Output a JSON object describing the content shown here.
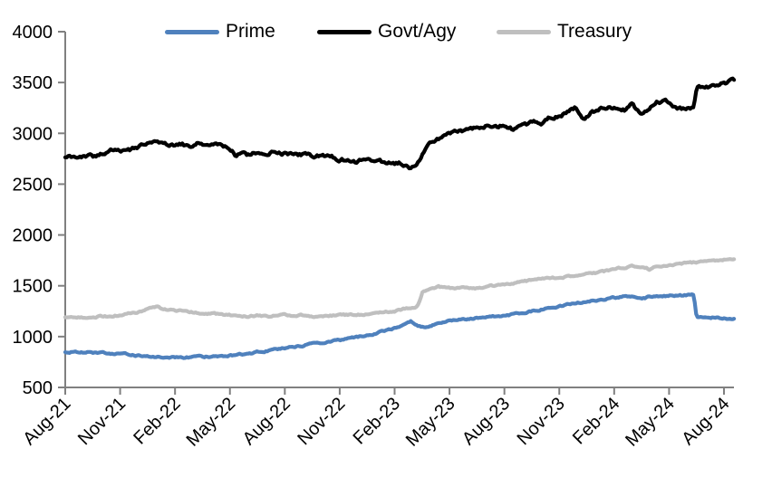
{
  "colors": {
    "background": "#FFFFFF",
    "axis": "#808080",
    "text": "#000000",
    "prime": "#4F81BD",
    "govt_agy": "#000000",
    "treasury": "#BFBFBF"
  },
  "chart_data": {
    "type": "line",
    "title": "",
    "xlabel": "",
    "ylabel": "",
    "grid": false,
    "legend_position": "top",
    "x_unit": "months since Aug-2021",
    "x_tick_labels": [
      "Aug-21",
      "Nov-21",
      "Feb-22",
      "May-22",
      "Aug-22",
      "Nov-22",
      "Feb-23",
      "May-23",
      "Aug-23",
      "Nov-23",
      "Feb-24",
      "May-24",
      "Aug-24"
    ],
    "x_tick_month_index": [
      0,
      3,
      6,
      9,
      12,
      15,
      18,
      21,
      24,
      27,
      30,
      33,
      36
    ],
    "ylim": [
      500,
      4000
    ],
    "y_ticks": [
      500,
      1000,
      1500,
      2000,
      2500,
      3000,
      3500,
      4000
    ],
    "series": [
      {
        "name": "Prime",
        "color": "#4F81BD",
        "points": [
          [
            0,
            850
          ],
          [
            1,
            844
          ],
          [
            2,
            840
          ],
          [
            3,
            832
          ],
          [
            4,
            812
          ],
          [
            5,
            798
          ],
          [
            6,
            792
          ],
          [
            7,
            798
          ],
          [
            8,
            806
          ],
          [
            9,
            815
          ],
          [
            10,
            835
          ],
          [
            11,
            858
          ],
          [
            12,
            888
          ],
          [
            13,
            915
          ],
          [
            14,
            940
          ],
          [
            15,
            965
          ],
          [
            16,
            995
          ],
          [
            17,
            1032
          ],
          [
            18,
            1078
          ],
          [
            18.5,
            1122
          ],
          [
            18.9,
            1152
          ],
          [
            19.3,
            1098
          ],
          [
            19.7,
            1090
          ],
          [
            20.2,
            1118
          ],
          [
            21,
            1158
          ],
          [
            22,
            1175
          ],
          [
            23,
            1188
          ],
          [
            24,
            1205
          ],
          [
            25,
            1235
          ],
          [
            26,
            1268
          ],
          [
            27,
            1295
          ],
          [
            28,
            1330
          ],
          [
            29,
            1360
          ],
          [
            30,
            1382
          ],
          [
            31,
            1400
          ],
          [
            31.5,
            1372
          ],
          [
            32,
            1393
          ],
          [
            33,
            1402
          ],
          [
            34,
            1405
          ],
          [
            34.35,
            1408
          ],
          [
            34.5,
            1192
          ],
          [
            35,
            1193
          ],
          [
            35.8,
            1182
          ],
          [
            36.55,
            1176
          ]
        ]
      },
      {
        "name": "Govt/Agy",
        "color": "#000000",
        "points": [
          [
            0,
            2775
          ],
          [
            0.5,
            2770
          ],
          [
            1,
            2782
          ],
          [
            1.5,
            2775
          ],
          [
            2,
            2800
          ],
          [
            2.5,
            2830
          ],
          [
            3,
            2815
          ],
          [
            3.5,
            2835
          ],
          [
            4,
            2862
          ],
          [
            4.6,
            2905
          ],
          [
            5,
            2932
          ],
          [
            5.3,
            2912
          ],
          [
            5.7,
            2880
          ],
          [
            6,
            2872
          ],
          [
            6.4,
            2895
          ],
          [
            6.8,
            2862
          ],
          [
            7.2,
            2895
          ],
          [
            7.6,
            2865
          ],
          [
            8,
            2875
          ],
          [
            8.5,
            2880
          ],
          [
            9,
            2858
          ],
          [
            9.3,
            2790
          ],
          [
            9.7,
            2800
          ],
          [
            10,
            2788
          ],
          [
            10.4,
            2815
          ],
          [
            11,
            2805
          ],
          [
            11.5,
            2812
          ],
          [
            12,
            2800
          ],
          [
            12.5,
            2795
          ],
          [
            13,
            2788
          ],
          [
            13.5,
            2775
          ],
          [
            14,
            2790
          ],
          [
            14.5,
            2770
          ],
          [
            15,
            2748
          ],
          [
            15.5,
            2732
          ],
          [
            16,
            2722
          ],
          [
            16.4,
            2752
          ],
          [
            16.8,
            2718
          ],
          [
            17.2,
            2715
          ],
          [
            17.6,
            2722
          ],
          [
            18,
            2692
          ],
          [
            18.4,
            2702
          ],
          [
            18.8,
            2662
          ],
          [
            19.1,
            2662
          ],
          [
            19.4,
            2758
          ],
          [
            19.8,
            2882
          ],
          [
            20.3,
            2942
          ],
          [
            20.7,
            2968
          ],
          [
            21,
            3002
          ],
          [
            21.4,
            3032
          ],
          [
            21.8,
            3020
          ],
          [
            22.2,
            3035
          ],
          [
            22.6,
            3062
          ],
          [
            23,
            3082
          ],
          [
            23.3,
            3032
          ],
          [
            23.7,
            3055
          ],
          [
            24,
            3082
          ],
          [
            24.4,
            3048
          ],
          [
            24.8,
            3065
          ],
          [
            25.2,
            3092
          ],
          [
            25.6,
            3125
          ],
          [
            26,
            3098
          ],
          [
            26.5,
            3162
          ],
          [
            27,
            3172
          ],
          [
            27.5,
            3212
          ],
          [
            27.9,
            3255
          ],
          [
            28.35,
            3138
          ],
          [
            28.7,
            3205
          ],
          [
            29,
            3228
          ],
          [
            29.4,
            3262
          ],
          [
            29.8,
            3258
          ],
          [
            30.2,
            3268
          ],
          [
            30.6,
            3232
          ],
          [
            31,
            3285
          ],
          [
            31.4,
            3200
          ],
          [
            31.8,
            3212
          ],
          [
            32.3,
            3302
          ],
          [
            32.8,
            3315
          ],
          [
            33.3,
            3262
          ],
          [
            33.8,
            3238
          ],
          [
            34.35,
            3258
          ],
          [
            34.5,
            3442
          ],
          [
            34.8,
            3460
          ],
          [
            35.2,
            3452
          ],
          [
            35.6,
            3468
          ],
          [
            36,
            3492
          ],
          [
            36.55,
            3525
          ]
        ]
      },
      {
        "name": "Treasury",
        "color": "#BFBFBF",
        "points": [
          [
            0,
            1190
          ],
          [
            1,
            1192
          ],
          [
            2,
            1198
          ],
          [
            3,
            1212
          ],
          [
            4,
            1242
          ],
          [
            4.7,
            1282
          ],
          [
            5,
            1290
          ],
          [
            5.4,
            1272
          ],
          [
            6,
            1258
          ],
          [
            6.5,
            1248
          ],
          [
            7,
            1240
          ],
          [
            8,
            1225
          ],
          [
            9,
            1212
          ],
          [
            10,
            1200
          ],
          [
            10.5,
            1205
          ],
          [
            11,
            1202
          ],
          [
            12,
            1212
          ],
          [
            13,
            1212
          ],
          [
            13.5,
            1202
          ],
          [
            14,
            1198
          ],
          [
            14.5,
            1208
          ],
          [
            15,
            1212
          ],
          [
            16,
            1216
          ],
          [
            17,
            1230
          ],
          [
            18,
            1252
          ],
          [
            18.9,
            1288
          ],
          [
            19.25,
            1295
          ],
          [
            19.55,
            1452
          ],
          [
            20,
            1465
          ],
          [
            20.4,
            1488
          ],
          [
            20.8,
            1480
          ],
          [
            21.3,
            1472
          ],
          [
            21.8,
            1478
          ],
          [
            22.3,
            1466
          ],
          [
            23,
            1492
          ],
          [
            24,
            1512
          ],
          [
            25,
            1540
          ],
          [
            26,
            1565
          ],
          [
            27,
            1578
          ],
          [
            28,
            1602
          ],
          [
            29,
            1628
          ],
          [
            30,
            1658
          ],
          [
            30.7,
            1688
          ],
          [
            31.1,
            1692
          ],
          [
            31.5,
            1695
          ],
          [
            31.95,
            1662
          ],
          [
            32.35,
            1690
          ],
          [
            33,
            1708
          ],
          [
            34,
            1722
          ],
          [
            35,
            1740
          ],
          [
            36,
            1756
          ],
          [
            36.55,
            1762
          ]
        ]
      }
    ]
  },
  "legend": {
    "items": [
      {
        "label": "Prime"
      },
      {
        "label": "Govt/Agy"
      },
      {
        "label": "Treasury"
      }
    ]
  }
}
